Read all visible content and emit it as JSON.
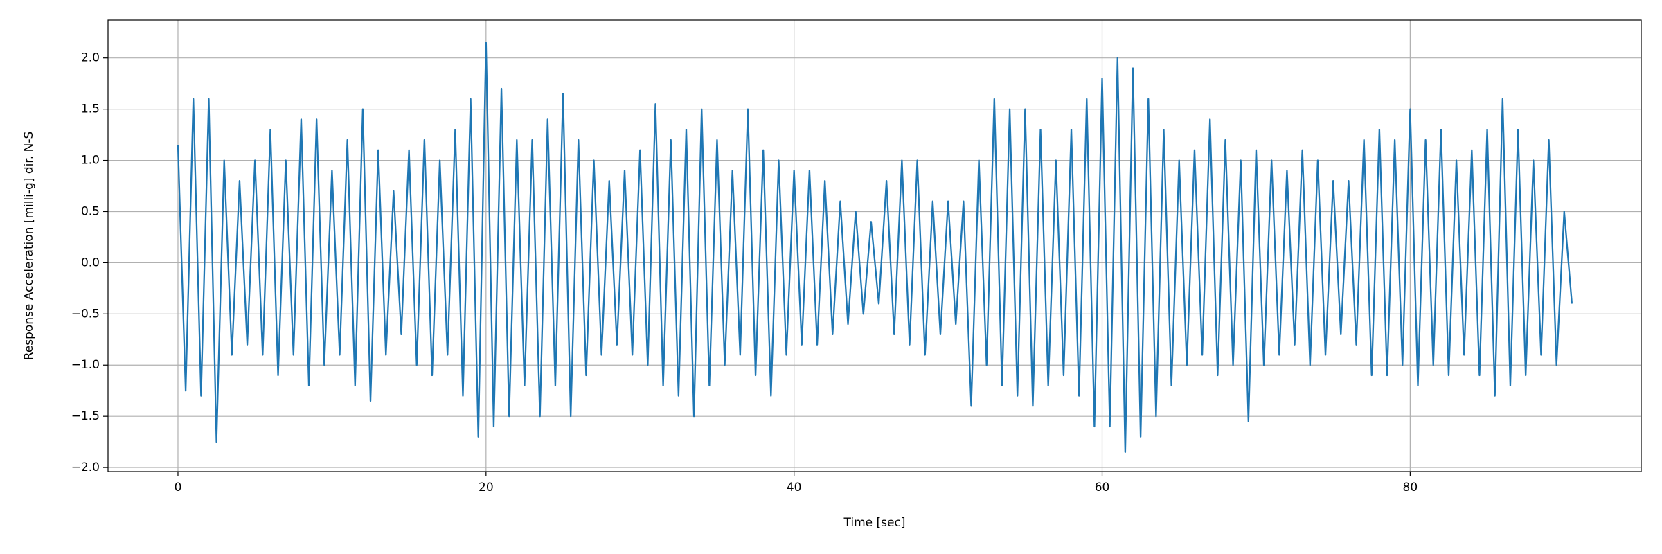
{
  "chart_data": {
    "type": "line",
    "xlabel": "Time [sec]",
    "ylabel": "Response Acceleration [milli-g] dir. N-S",
    "x": [
      0,
      0.5,
      1,
      1.5,
      2,
      2.5,
      3,
      3.5,
      4,
      4.5,
      5,
      5.5,
      6,
      6.5,
      7,
      7.5,
      8,
      8.5,
      9,
      9.5,
      10,
      10.5,
      11,
      11.5,
      12,
      12.5,
      13,
      13.5,
      14,
      14.5,
      15,
      15.5,
      16,
      16.5,
      17,
      17.5,
      18,
      18.5,
      19,
      19.5,
      20,
      20.5,
      21,
      21.5,
      22,
      22.5,
      23,
      23.5,
      24,
      24.5,
      25,
      25.5,
      26,
      26.5,
      27,
      27.5,
      28,
      28.5,
      29,
      29.5,
      30,
      30.5,
      31,
      31.5,
      32,
      32.5,
      33,
      33.5,
      34,
      34.5,
      35,
      35.5,
      36,
      36.5,
      37,
      37.5,
      38,
      38.5,
      39,
      39.5,
      40,
      40.5,
      41,
      41.5,
      42,
      42.5,
      43,
      43.5,
      44,
      44.5,
      45,
      45.5,
      46,
      46.5,
      47,
      47.5,
      48,
      48.5,
      49,
      49.5,
      50,
      50.5,
      51,
      51.5,
      52,
      52.5,
      53,
      53.5,
      54,
      54.5,
      55,
      55.5,
      56,
      56.5,
      57,
      57.5,
      58,
      58.5,
      59,
      59.5,
      60,
      60.5,
      61,
      61.5,
      62,
      62.5,
      63,
      63.5,
      64,
      64.5,
      65,
      65.5,
      66,
      66.5,
      67,
      67.5,
      68,
      68.5,
      69,
      69.5,
      70,
      70.5,
      71,
      71.5,
      72,
      72.5,
      73,
      73.5,
      74,
      74.5,
      75,
      75.5,
      76,
      76.5,
      77,
      77.5,
      78,
      78.5,
      79,
      79.5,
      80,
      80.5,
      81,
      81.5,
      82,
      82.5,
      83,
      83.5,
      84,
      84.5,
      85,
      85.5,
      86,
      86.5,
      87,
      87.5,
      88,
      88.5,
      89,
      89.5,
      90,
      90.5
    ],
    "series": [
      {
        "name": "Response Acceleration",
        "color": "#1f77b4",
        "values": [
          1.15,
          -1.25,
          1.6,
          -1.3,
          1.6,
          -1.75,
          1.0,
          -0.9,
          0.8,
          -0.8,
          1.0,
          -0.9,
          1.3,
          -1.1,
          1.0,
          -0.9,
          1.4,
          -1.2,
          1.4,
          -1.0,
          0.9,
          -0.9,
          1.2,
          -1.2,
          1.5,
          -1.35,
          1.1,
          -0.9,
          0.7,
          -0.7,
          1.1,
          -1.0,
          1.2,
          -1.1,
          1.0,
          -0.9,
          1.3,
          -1.3,
          1.6,
          -1.7,
          2.15,
          -1.6,
          1.7,
          -1.5,
          1.2,
          -1.2,
          1.2,
          -1.5,
          1.4,
          -1.2,
          1.65,
          -1.5,
          1.2,
          -1.1,
          1.0,
          -0.9,
          0.8,
          -0.8,
          0.9,
          -0.9,
          1.1,
          -1.0,
          1.55,
          -1.2,
          1.2,
          -1.3,
          1.3,
          -1.5,
          1.5,
          -1.2,
          1.2,
          -1.0,
          0.9,
          -0.9,
          1.5,
          -1.1,
          1.1,
          -1.3,
          1.0,
          -0.9,
          0.9,
          -0.8,
          0.9,
          -0.8,
          0.8,
          -0.7,
          0.6,
          -0.6,
          0.5,
          -0.5,
          0.4,
          -0.4,
          0.8,
          -0.7,
          1.0,
          -0.8,
          1.0,
          -0.9,
          0.6,
          -0.7,
          0.6,
          -0.6,
          0.6,
          -1.4,
          1.0,
          -1.0,
          1.6,
          -1.2,
          1.5,
          -1.3,
          1.5,
          -1.4,
          1.3,
          -1.2,
          1.0,
          -1.1,
          1.3,
          -1.3,
          1.6,
          -1.6,
          1.8,
          -1.6,
          2.0,
          -1.85,
          1.9,
          -1.7,
          1.6,
          -1.5,
          1.3,
          -1.2,
          1.0,
          -1.0,
          1.1,
          -0.9,
          1.4,
          -1.1,
          1.2,
          -1.0,
          1.0,
          -1.55,
          1.1,
          -1.0,
          1.0,
          -0.9,
          0.9,
          -0.8,
          1.1,
          -1.0,
          1.0,
          -0.9,
          0.8,
          -0.7,
          0.8,
          -0.8,
          1.2,
          -1.1,
          1.3,
          -1.1,
          1.2,
          -1.0,
          1.5,
          -1.2,
          1.2,
          -1.0,
          1.3,
          -1.1,
          1.0,
          -0.9,
          1.1,
          -1.1,
          1.3,
          -1.3,
          1.6,
          -1.2,
          1.3,
          -1.1,
          1.0,
          -0.9,
          1.2,
          -1.0,
          0.5,
          -0.4
        ]
      }
    ],
    "xlim": [
      -4.54,
      95.0
    ],
    "ylim": [
      -2.04,
      2.37
    ],
    "xticks": [
      0,
      20,
      40,
      60,
      80
    ],
    "yticks": [
      {
        "value": -2,
        "label": "−2.0"
      },
      {
        "value": -1.5,
        "label": "−1.5"
      },
      {
        "value": -1,
        "label": "−1.0"
      },
      {
        "value": -0.5,
        "label": "−0.5"
      },
      {
        "value": 0,
        "label": "0.0"
      },
      0.5,
      {
        "value": 1,
        "label": "1.0"
      },
      1.5,
      {
        "value": 2,
        "label": "2.0"
      }
    ],
    "grid": true
  }
}
